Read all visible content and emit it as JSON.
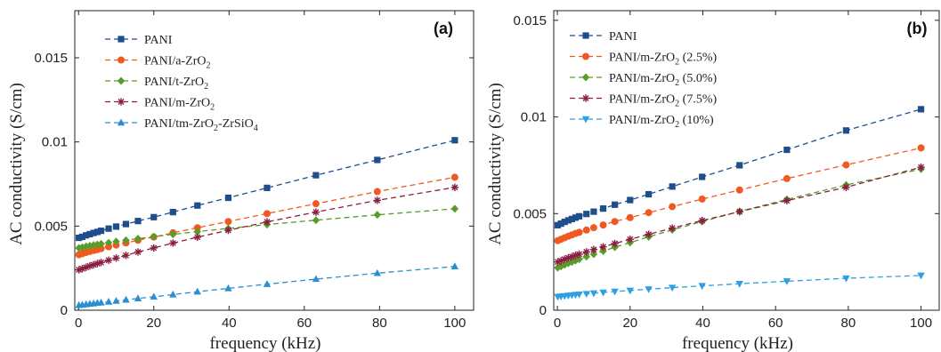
{
  "chart_data": [
    {
      "type": "line",
      "panel_label": "(a)",
      "xlabel": "frequency (kHz)",
      "ylabel": "AC conductivity (S/cm)",
      "xlim": [
        -1,
        105
      ],
      "ylim": [
        0,
        0.0178
      ],
      "xticks": [
        0,
        20,
        40,
        60,
        80,
        100
      ],
      "xtick_labels": [
        "0",
        "20",
        "40",
        "60",
        "80",
        "100"
      ],
      "yticks": [
        0,
        0.005,
        0.01,
        0.015
      ],
      "ytick_labels": [
        "0",
        "0.005",
        "0.01",
        "0.015"
      ],
      "legend_position": "top-left",
      "x": [
        0.1,
        0.5,
        1,
        1.5,
        2,
        2.5,
        3,
        4,
        5,
        6,
        8,
        10,
        12.6,
        15.8,
        20,
        25.1,
        31.6,
        39.8,
        50.1,
        63.1,
        79.4,
        100
      ],
      "marker_x": [
        0.1,
        1,
        2,
        3,
        4,
        5,
        6,
        8,
        10,
        12.6,
        15.8,
        20,
        25.1,
        31.6,
        39.8,
        50.1,
        63.1,
        79.4,
        100
      ],
      "series": [
        {
          "name": "PANI",
          "name_sub": "",
          "name_suffix": "",
          "color": "#1f4e8c",
          "marker": "square",
          "values": [
            0.0043,
            0.00433,
            0.00436,
            0.00441,
            0.00445,
            0.00448,
            0.00452,
            0.00459,
            0.00465,
            0.00472,
            0.00485,
            0.00497,
            0.00512,
            0.0053,
            0.00553,
            0.00583,
            0.00622,
            0.00668,
            0.00727,
            0.00802,
            0.00893,
            0.0101
          ]
        },
        {
          "name": "PANI/a-ZrO",
          "name_sub": "2",
          "name_suffix": "",
          "color": "#f05a22",
          "marker": "circle",
          "values": [
            0.0033,
            0.00333,
            0.00336,
            0.0034,
            0.00343,
            0.00346,
            0.00349,
            0.00355,
            0.0036,
            0.00366,
            0.00377,
            0.00387,
            0.004,
            0.00416,
            0.00435,
            0.0046,
            0.0049,
            0.00527,
            0.00574,
            0.00633,
            0.00705,
            0.0079
          ]
        },
        {
          "name": "PANI/t-ZrO",
          "name_sub": "2",
          "name_suffix": "",
          "color": "#5a9c2a",
          "marker": "diamond",
          "values": [
            0.0037,
            0.00372,
            0.00374,
            0.00377,
            0.00379,
            0.00381,
            0.00383,
            0.00387,
            0.0039,
            0.00394,
            0.00401,
            0.00408,
            0.00416,
            0.00425,
            0.00437,
            0.00451,
            0.00467,
            0.00486,
            0.00509,
            0.00535,
            0.00567,
            0.00603
          ]
        },
        {
          "name": "PANI/m-ZrO",
          "name_sub": "2",
          "name_suffix": "",
          "color": "#8b1e3f",
          "marker": "star",
          "values": [
            0.0024,
            0.00243,
            0.00247,
            0.00251,
            0.00255,
            0.00259,
            0.00263,
            0.0027,
            0.00277,
            0.00284,
            0.00297,
            0.0031,
            0.00326,
            0.00346,
            0.0037,
            0.00399,
            0.00434,
            0.00475,
            0.00525,
            0.00583,
            0.00653,
            0.0073
          ]
        },
        {
          "name": "PANI/tm-ZrO",
          "name_sub": "2",
          "name_suffix": "-ZrSiO",
          "name_sub2": "4",
          "color": "#2a8fd0",
          "marker": "triangle-up",
          "values": [
            0.0003,
            0.00031,
            0.00032,
            0.00034,
            0.00035,
            0.00036,
            0.00038,
            0.0004,
            0.00043,
            0.00045,
            0.0005,
            0.00055,
            0.00062,
            0.0007,
            0.0008,
            0.00093,
            0.0011,
            0.0013,
            0.00155,
            0.00185,
            0.0022,
            0.0026
          ]
        }
      ]
    },
    {
      "type": "line",
      "panel_label": "(b)",
      "xlabel": "frequency (kHz)",
      "ylabel": "AC conductivity (S/cm)",
      "xlim": [
        -1,
        105
      ],
      "ylim": [
        0,
        0.0155
      ],
      "xticks": [
        0,
        20,
        40,
        60,
        80,
        100
      ],
      "xtick_labels": [
        "0",
        "20",
        "40",
        "60",
        "80",
        "100"
      ],
      "yticks": [
        0,
        0.005,
        0.01,
        0.015
      ],
      "ytick_labels": [
        "0",
        "0.005",
        "0.01",
        "0.015"
      ],
      "legend_position": "top-left",
      "x": [
        0.1,
        0.5,
        1,
        1.5,
        2,
        2.5,
        3,
        4,
        5,
        6,
        8,
        10,
        12.6,
        15.8,
        20,
        25.1,
        31.6,
        39.8,
        50.1,
        63.1,
        79.4,
        100
      ],
      "marker_x": [
        0.1,
        1,
        2,
        3,
        4,
        5,
        6,
        8,
        10,
        12.6,
        15.8,
        20,
        25.1,
        31.6,
        39.8,
        50.1,
        63.1,
        79.4,
        100
      ],
      "series": [
        {
          "name": "PANI",
          "name_sub": "",
          "name_suffix": "",
          "color": "#1f4e8c",
          "marker": "square",
          "values": [
            0.0044,
            0.00444,
            0.00448,
            0.00453,
            0.00457,
            0.00461,
            0.00465,
            0.00472,
            0.00479,
            0.00486,
            0.00498,
            0.0051,
            0.00526,
            0.00546,
            0.0057,
            0.006,
            0.0064,
            0.0069,
            0.0075,
            0.0083,
            0.0093,
            0.0104
          ]
        },
        {
          "name": "PANI/m-ZrO",
          "name_sub": "2",
          "name_suffix": " (2.5%)",
          "color": "#f05a22",
          "marker": "circle",
          "values": [
            0.0036,
            0.00363,
            0.00367,
            0.00371,
            0.00375,
            0.00379,
            0.00383,
            0.0039,
            0.00397,
            0.00403,
            0.00415,
            0.00427,
            0.00441,
            0.00459,
            0.00479,
            0.00505,
            0.00536,
            0.00575,
            0.00622,
            0.00681,
            0.00752,
            0.0084
          ]
        },
        {
          "name": "PANI/m-ZrO",
          "name_sub": "2",
          "name_suffix": " (5.0%)",
          "color": "#5a9c2a",
          "marker": "diamond",
          "values": [
            0.0022,
            0.00223,
            0.00227,
            0.00231,
            0.00235,
            0.00239,
            0.00243,
            0.0025,
            0.00257,
            0.00264,
            0.00277,
            0.0029,
            0.00306,
            0.00326,
            0.0035,
            0.0038,
            0.00416,
            0.00459,
            0.00511,
            0.00573,
            0.00648,
            0.0073
          ]
        },
        {
          "name": "PANI/m-ZrO",
          "name_sub": "2",
          "name_suffix": " (7.5%)",
          "color": "#8b1e3f",
          "marker": "star",
          "values": [
            0.0025,
            0.00253,
            0.00256,
            0.0026,
            0.00264,
            0.00267,
            0.00271,
            0.00277,
            0.00284,
            0.0029,
            0.00302,
            0.00314,
            0.00328,
            0.00345,
            0.00367,
            0.00393,
            0.00425,
            0.00464,
            0.0051,
            0.00567,
            0.00636,
            0.0074
          ]
        },
        {
          "name": "PANI/m-ZrO",
          "name_sub": "2",
          "name_suffix": " (10%)",
          "color": "#2e9fe0",
          "marker": "triangle-down",
          "values": [
            0.0007,
            0.00071,
            0.00072,
            0.00073,
            0.00074,
            0.00075,
            0.00076,
            0.00078,
            0.0008,
            0.00082,
            0.00085,
            0.00088,
            0.00092,
            0.00097,
            0.00102,
            0.00109,
            0.00117,
            0.00126,
            0.00137,
            0.0015,
            0.00165,
            0.0018
          ]
        }
      ]
    }
  ]
}
